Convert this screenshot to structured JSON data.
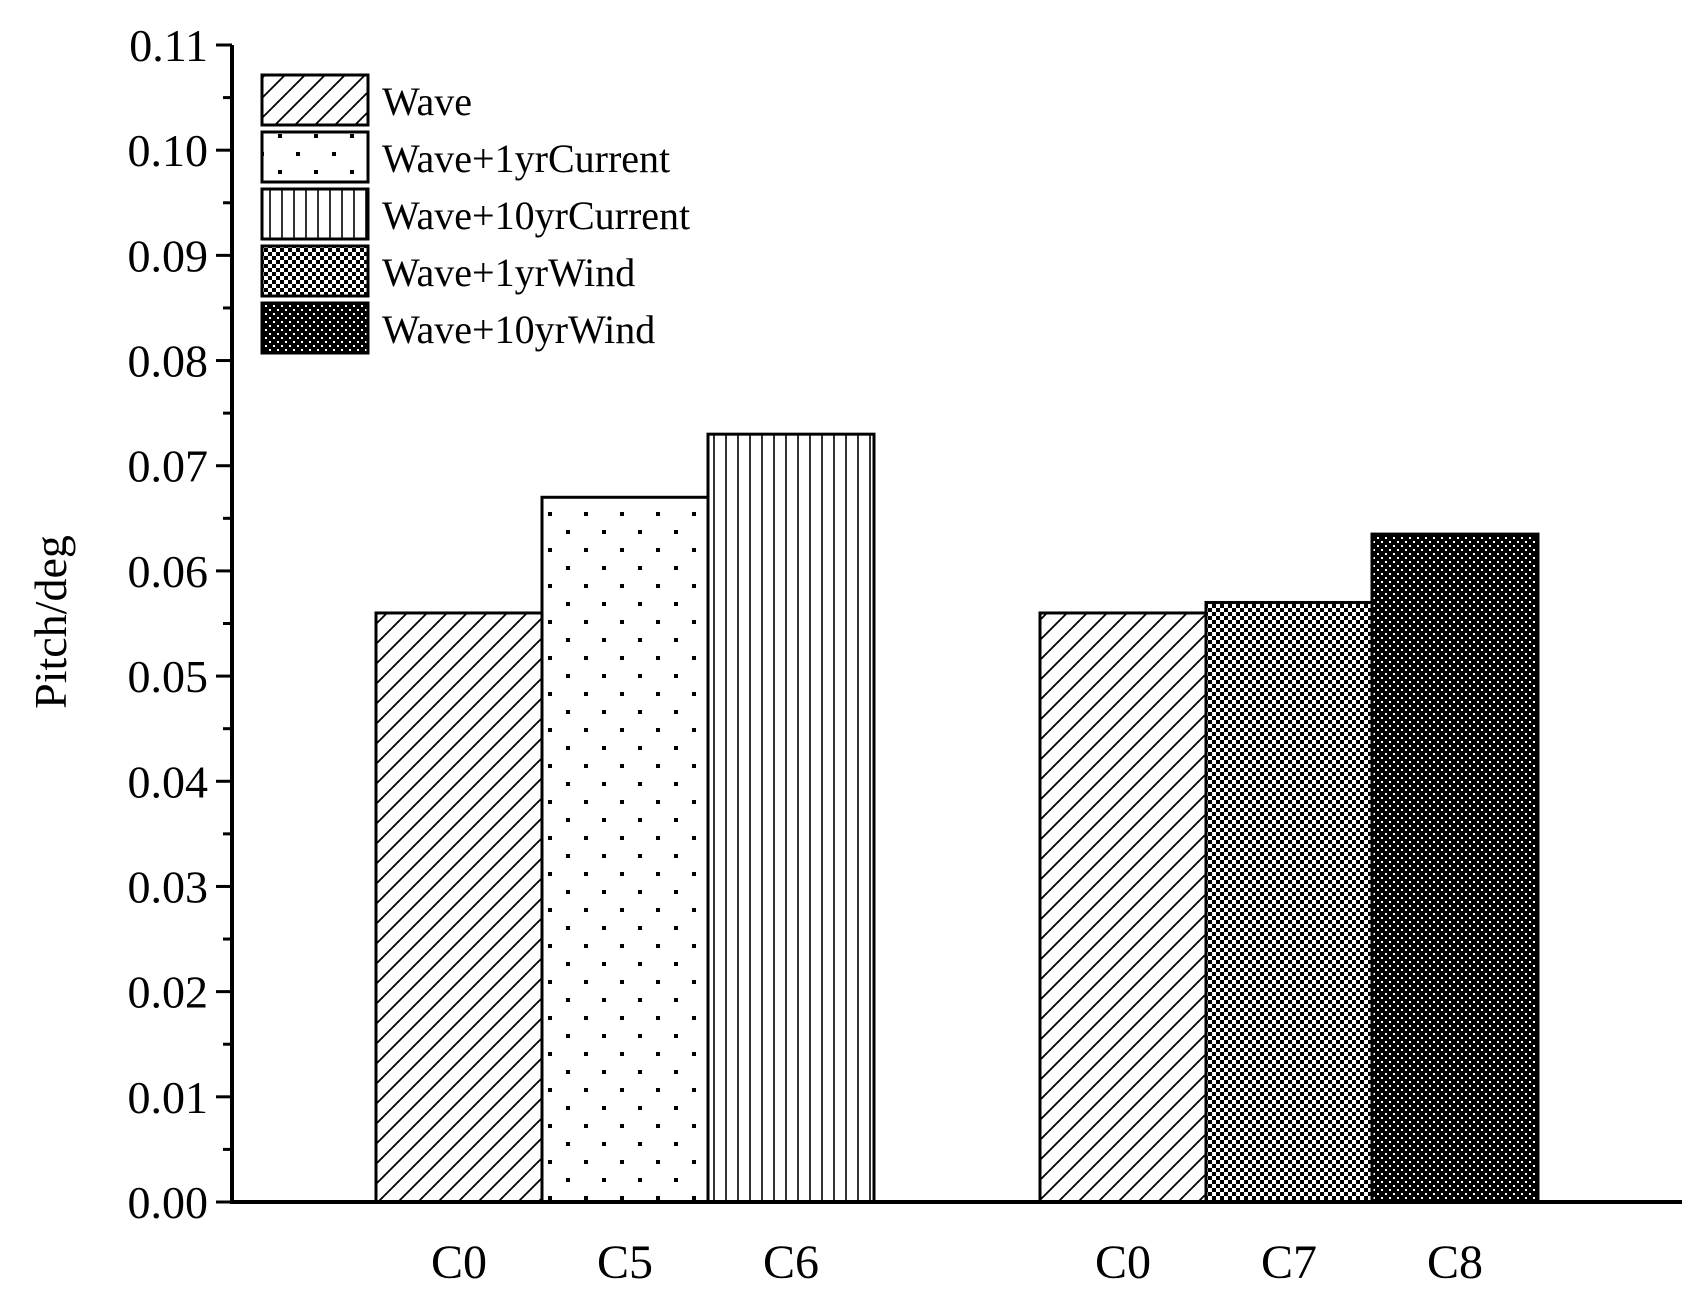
{
  "chart_data": {
    "type": "bar",
    "title": "",
    "xlabel": "",
    "ylabel": "Pitch/deg",
    "ylim": [
      0,
      0.11
    ],
    "yticks": [
      "0.00",
      "0.01",
      "0.02",
      "0.03",
      "0.04",
      "0.05",
      "0.06",
      "0.07",
      "0.08",
      "0.09",
      "0.10",
      "0.11"
    ],
    "grid": false,
    "legend_position": "top-left",
    "bars": [
      {
        "category": "C0",
        "series": "Wave",
        "value": 0.056,
        "pattern": "diagonal-hatch"
      },
      {
        "category": "C5",
        "series": "Wave+1yrCurrent",
        "value": 0.067,
        "pattern": "dots"
      },
      {
        "category": "C6",
        "series": "Wave+10yrCurrent",
        "value": 0.073,
        "pattern": "vertical-lines"
      },
      {
        "category": "C0",
        "series": "Wave",
        "value": 0.056,
        "pattern": "diagonal-hatch"
      },
      {
        "category": "C7",
        "series": "Wave+1yrWind",
        "value": 0.057,
        "pattern": "fine-checker"
      },
      {
        "category": "C8",
        "series": "Wave+10yrWind",
        "value": 0.0635,
        "pattern": "dense-checker"
      }
    ],
    "legend": [
      {
        "label": "Wave",
        "pattern": "diagonal-hatch"
      },
      {
        "label": "Wave+1yrCurrent",
        "pattern": "dots"
      },
      {
        "label": "Wave+10yrCurrent",
        "pattern": "vertical-lines"
      },
      {
        "label": "Wave+1yrWind",
        "pattern": "fine-checker"
      },
      {
        "label": "Wave+10yrWind",
        "pattern": "dense-checker"
      }
    ]
  }
}
